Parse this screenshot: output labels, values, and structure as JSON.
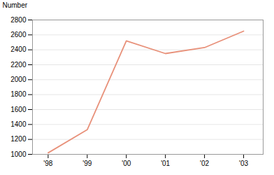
{
  "chart_data": {
    "type": "line",
    "ylabel": "Number",
    "x": [
      1998,
      1999,
      2000,
      2001,
      2002,
      2003
    ],
    "values": [
      1020,
      1330,
      2520,
      2350,
      2430,
      2650
    ],
    "color": "#E8917A",
    "xlim": [
      1997.6,
      2003.5
    ],
    "xticks": [
      {
        "value": 1998,
        "label": "'98"
      },
      {
        "value": 1999,
        "label": "'99"
      },
      {
        "value": 2000,
        "label": "'00"
      },
      {
        "value": 2001,
        "label": "'01"
      },
      {
        "value": 2002,
        "label": "'02"
      },
      {
        "value": 2003,
        "label": "'03"
      }
    ],
    "ylim": [
      1000,
      2800
    ],
    "yticks": [
      1000,
      1200,
      1400,
      1600,
      1800,
      2000,
      2200,
      2400,
      2600,
      2800
    ],
    "grid": true
  }
}
